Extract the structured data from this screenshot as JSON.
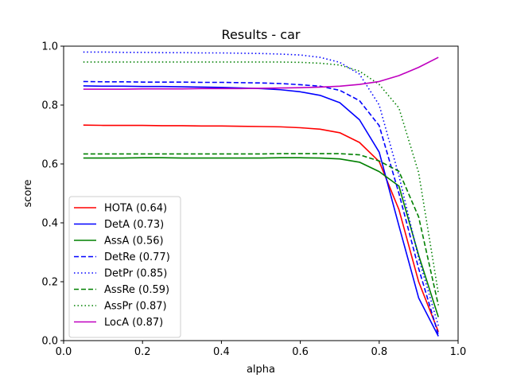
{
  "chart_data": {
    "type": "line",
    "title": "Results - car",
    "xlabel": "alpha",
    "ylabel": "score",
    "xlim": [
      0.0,
      1.0
    ],
    "ylim": [
      0.0,
      1.0
    ],
    "xticks": [
      "0.0",
      "0.2",
      "0.4",
      "0.6",
      "0.8",
      "1.0"
    ],
    "yticks": [
      "0.0",
      "0.2",
      "0.4",
      "0.6",
      "0.8",
      "1.0"
    ],
    "grid": false,
    "legend_position": "lower-left",
    "x": [
      0.05,
      0.1,
      0.15,
      0.2,
      0.25,
      0.3,
      0.35,
      0.4,
      0.45,
      0.5,
      0.55,
      0.6,
      0.65,
      0.7,
      0.75,
      0.8,
      0.85,
      0.9,
      0.95
    ],
    "series": [
      {
        "name": "HOTA (0.64)",
        "color": "#ff0000",
        "dash": "solid",
        "values": [
          0.732,
          0.731,
          0.731,
          0.731,
          0.73,
          0.73,
          0.729,
          0.729,
          0.728,
          0.727,
          0.726,
          0.723,
          0.718,
          0.706,
          0.673,
          0.608,
          0.445,
          0.2,
          0.03
        ]
      },
      {
        "name": "DetA (0.73)",
        "color": "#0000ff",
        "dash": "solid",
        "values": [
          0.865,
          0.864,
          0.864,
          0.863,
          0.863,
          0.862,
          0.861,
          0.86,
          0.858,
          0.856,
          0.852,
          0.845,
          0.833,
          0.808,
          0.75,
          0.64,
          0.39,
          0.145,
          0.015
        ]
      },
      {
        "name": "AssA (0.56)",
        "color": "#008000",
        "dash": "solid",
        "values": [
          0.62,
          0.62,
          0.62,
          0.621,
          0.621,
          0.62,
          0.62,
          0.62,
          0.62,
          0.62,
          0.621,
          0.621,
          0.62,
          0.617,
          0.606,
          0.574,
          0.525,
          0.29,
          0.08
        ]
      },
      {
        "name": "DetRe (0.77)",
        "color": "#0000ff",
        "dash": "dashed",
        "values": [
          0.88,
          0.879,
          0.879,
          0.878,
          0.878,
          0.878,
          0.877,
          0.877,
          0.876,
          0.875,
          0.873,
          0.869,
          0.864,
          0.85,
          0.815,
          0.73,
          0.5,
          0.245,
          0.02
        ]
      },
      {
        "name": "DetPr (0.85)",
        "color": "#0000ff",
        "dash": "dotted",
        "values": [
          0.98,
          0.98,
          0.979,
          0.979,
          0.978,
          0.978,
          0.977,
          0.977,
          0.976,
          0.975,
          0.973,
          0.97,
          0.962,
          0.945,
          0.905,
          0.8,
          0.56,
          0.28,
          0.05
        ]
      },
      {
        "name": "AssRe (0.59)",
        "color": "#008000",
        "dash": "dashed",
        "values": [
          0.634,
          0.634,
          0.634,
          0.634,
          0.634,
          0.634,
          0.634,
          0.634,
          0.634,
          0.634,
          0.635,
          0.635,
          0.635,
          0.635,
          0.631,
          0.61,
          0.575,
          0.42,
          0.12
        ]
      },
      {
        "name": "AssPr (0.87)",
        "color": "#008000",
        "dash": "dotted",
        "values": [
          0.946,
          0.946,
          0.946,
          0.946,
          0.946,
          0.946,
          0.946,
          0.946,
          0.946,
          0.946,
          0.946,
          0.945,
          0.942,
          0.936,
          0.915,
          0.87,
          0.79,
          0.57,
          0.16
        ]
      },
      {
        "name": "LocA (0.87)",
        "color": "#bf00bf",
        "dash": "solid",
        "values": [
          0.854,
          0.854,
          0.854,
          0.855,
          0.855,
          0.855,
          0.856,
          0.856,
          0.856,
          0.857,
          0.858,
          0.859,
          0.861,
          0.864,
          0.87,
          0.88,
          0.9,
          0.928,
          0.962
        ]
      }
    ]
  }
}
